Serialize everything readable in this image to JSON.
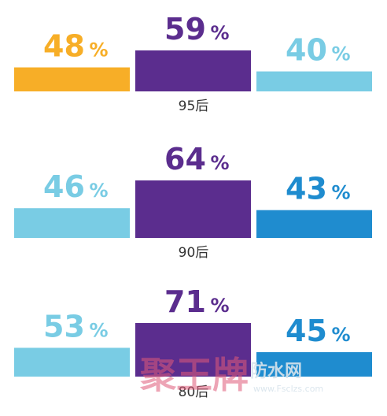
{
  "chart_data": {
    "type": "bar",
    "title": "",
    "xlabel": "",
    "ylabel": "",
    "ylim": [
      0,
      100
    ],
    "unit_suffix": "%",
    "groups": [
      {
        "label": "95后",
        "bars": [
          {
            "value": 48,
            "label": "48",
            "color": "#F7AE27"
          },
          {
            "value": 59,
            "label": "59",
            "color": "#5B2D8E"
          },
          {
            "value": 40,
            "label": "40",
            "color": "#79CCE4"
          }
        ]
      },
      {
        "label": "90后",
        "bars": [
          {
            "value": 46,
            "label": "46",
            "color": "#79CCE4"
          },
          {
            "value": 64,
            "label": "64",
            "color": "#5B2D8E"
          },
          {
            "value": 43,
            "label": "43",
            "color": "#1F8CCF"
          }
        ]
      },
      {
        "label": "80后",
        "bars": [
          {
            "value": 53,
            "label": "53",
            "color": "#79CCE4"
          },
          {
            "value": 71,
            "label": "71",
            "color": "#5B2D8E"
          },
          {
            "value": 45,
            "label": "45",
            "color": "#1F8CCF"
          }
        ]
      }
    ]
  },
  "watermark": {
    "brand": "聚王牌",
    "site": "防水网",
    "url": "www.Fsclzs.com",
    "colors": {
      "brand": "#E05A7A",
      "site": "#D8E4EC"
    }
  }
}
